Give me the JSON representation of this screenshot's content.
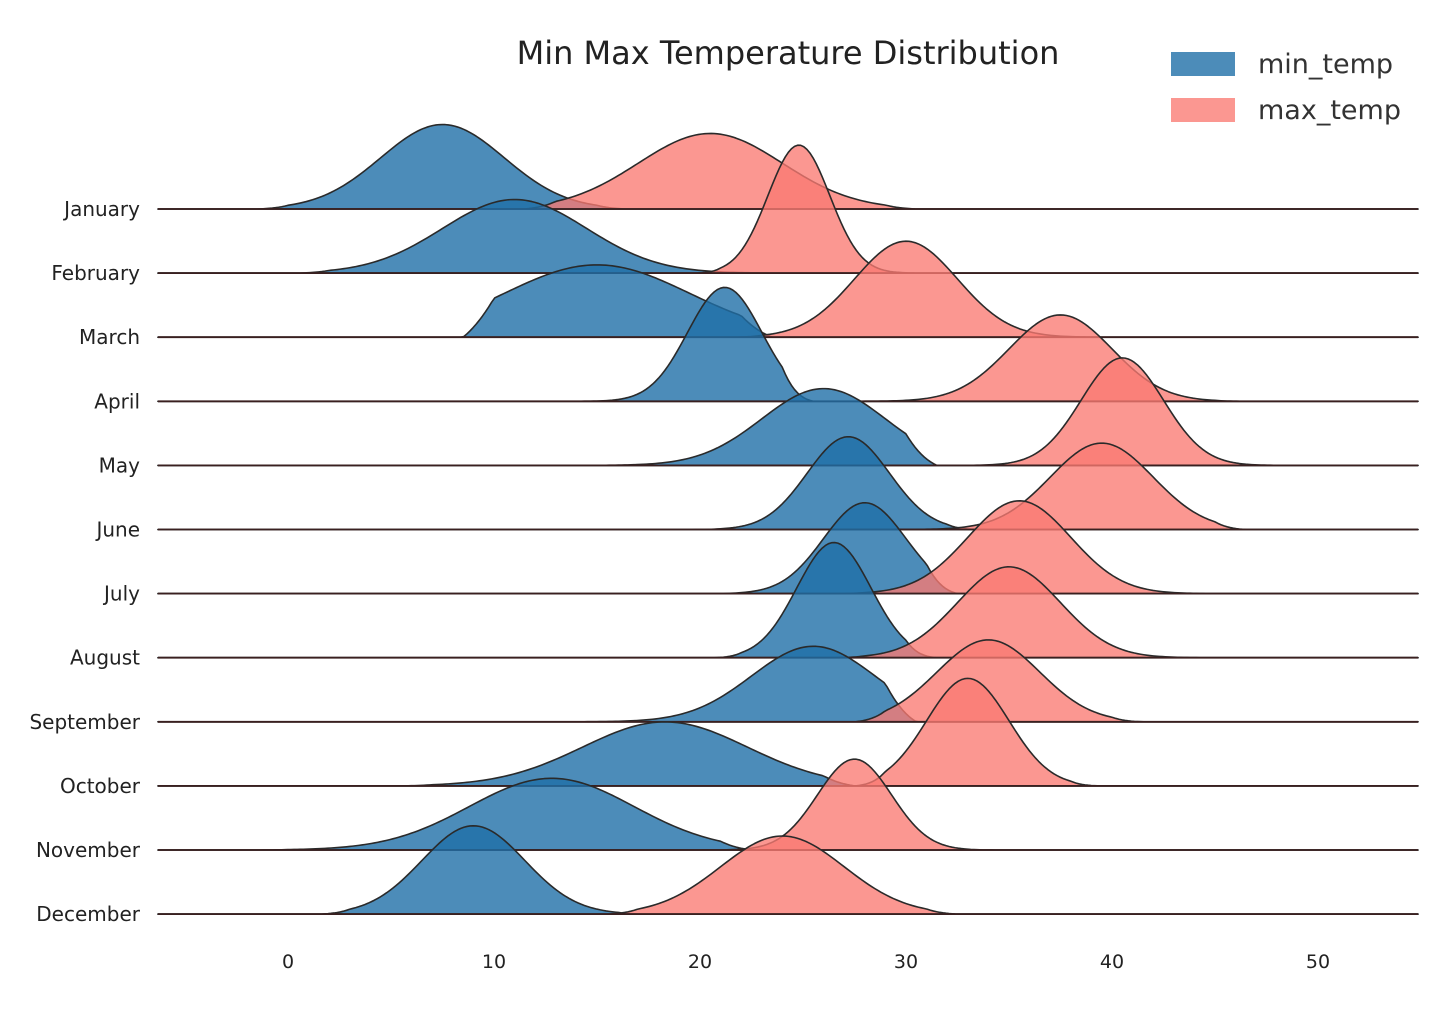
{
  "chart_data": {
    "type": "ridgeline",
    "title": "Min Max Temperature Distribution",
    "xlabel": "",
    "ylabel": "",
    "xlim": [
      -6.5,
      55
    ],
    "x_ticks": [
      0,
      10,
      20,
      30,
      40,
      50
    ],
    "grid": false,
    "legend_position": "top-right",
    "colors": {
      "min_temp": "#1f6fa8",
      "max_temp": "#fa7a72"
    },
    "categories": [
      "January",
      "February",
      "March",
      "April",
      "May",
      "June",
      "July",
      "August",
      "September",
      "October",
      "November",
      "December"
    ],
    "series": [
      {
        "name": "min_temp",
        "peaks": [
          {
            "month": "January",
            "mean": 7.5,
            "spread": 3.0,
            "peak_height": 1.32,
            "range": [
              0,
              15
            ]
          },
          {
            "month": "February",
            "mean": 11.0,
            "spread": 3.5,
            "peak_height": 1.15,
            "range": [
              2,
              23
            ]
          },
          {
            "month": "March",
            "mean": 15.0,
            "spread": 4.5,
            "peak_height": 1.13,
            "range": [
              10,
              22
            ]
          },
          {
            "month": "April",
            "mean": 21.2,
            "spread": 1.8,
            "peak_height": 1.78,
            "range": [
              13,
              24
            ]
          },
          {
            "month": "May",
            "mean": 26.0,
            "spread": 3.0,
            "peak_height": 1.2,
            "range": [
              13,
              30
            ]
          },
          {
            "month": "June",
            "mean": 27.2,
            "spread": 2.0,
            "peak_height": 1.45,
            "range": [
              21,
              32
            ]
          },
          {
            "month": "July",
            "mean": 28.0,
            "spread": 2.0,
            "peak_height": 1.42,
            "range": [
              22,
              31
            ]
          },
          {
            "month": "August",
            "mean": 26.5,
            "spread": 1.8,
            "peak_height": 1.8,
            "range": [
              22,
              30
            ]
          },
          {
            "month": "September",
            "mean": 25.5,
            "spread": 3.0,
            "peak_height": 1.18,
            "range": [
              15,
              29
            ]
          },
          {
            "month": "October",
            "mean": 18.3,
            "spread": 4.0,
            "peak_height": 1.0,
            "range": [
              7,
              26
            ]
          },
          {
            "month": "November",
            "mean": 12.8,
            "spread": 4.0,
            "peak_height": 1.12,
            "range": [
              0,
              21
            ]
          },
          {
            "month": "December",
            "mean": 9.0,
            "spread": 2.5,
            "peak_height": 1.38,
            "range": [
              3,
              16
            ]
          }
        ]
      },
      {
        "name": "max_temp",
        "peaks": [
          {
            "month": "January",
            "mean": 20.5,
            "spread": 3.5,
            "peak_height": 1.18,
            "range": [
              13,
              29
            ]
          },
          {
            "month": "February",
            "mean": 24.8,
            "spread": 1.5,
            "peak_height": 2.0,
            "range": [
              21,
              30
            ]
          },
          {
            "month": "March",
            "mean": 30.0,
            "spread": 2.5,
            "peak_height": 1.5,
            "range": [
              23,
              40
            ]
          },
          {
            "month": "April",
            "mean": 37.5,
            "spread": 2.5,
            "peak_height": 1.35,
            "range": [
              27,
              45
            ]
          },
          {
            "month": "May",
            "mean": 40.5,
            "spread": 2.0,
            "peak_height": 1.68,
            "range": [
              31,
              48
            ]
          },
          {
            "month": "June",
            "mean": 39.5,
            "spread": 2.5,
            "peak_height": 1.35,
            "range": [
              30,
              45
            ]
          },
          {
            "month": "July",
            "mean": 35.5,
            "spread": 2.5,
            "peak_height": 1.45,
            "range": [
              28,
              44
            ]
          },
          {
            "month": "August",
            "mean": 35.0,
            "spread": 2.5,
            "peak_height": 1.42,
            "range": [
              28,
              44
            ]
          },
          {
            "month": "September",
            "mean": 34.0,
            "spread": 2.5,
            "peak_height": 1.28,
            "range": [
              29,
              40
            ]
          },
          {
            "month": "October",
            "mean": 33.0,
            "spread": 2.0,
            "peak_height": 1.68,
            "range": [
              29,
              38
            ]
          },
          {
            "month": "November",
            "mean": 27.5,
            "spread": 1.8,
            "peak_height": 1.42,
            "range": [
              20,
              33
            ]
          },
          {
            "month": "December",
            "mean": 24.0,
            "spread": 3.0,
            "peak_height": 1.22,
            "range": [
              17,
              31
            ]
          }
        ]
      }
    ]
  }
}
